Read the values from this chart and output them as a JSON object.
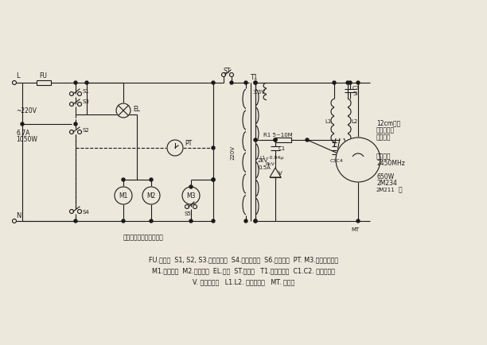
{
  "bg_color": "#ede8dc",
  "line_color": "#1a1a1a",
  "lw": 0.8,
  "fig_w": 6.12,
  "fig_h": 4.35,
  "dpi": 100,
  "caption_lines": [
    "FU.熔断器  S1, S2, S3.门联锁开关  S4.定时器开关  S6.火力开关  PT. M3.定时火力电机",
    "M1.转盘电机  M2.风扇电机  EL.炉灯  ST.温控器   T1.高压变压器  C1.C2. 高压电容管",
    "V. 高压二极管   L1.L2. 电感阻流圈   MT. 磁控管"
  ]
}
